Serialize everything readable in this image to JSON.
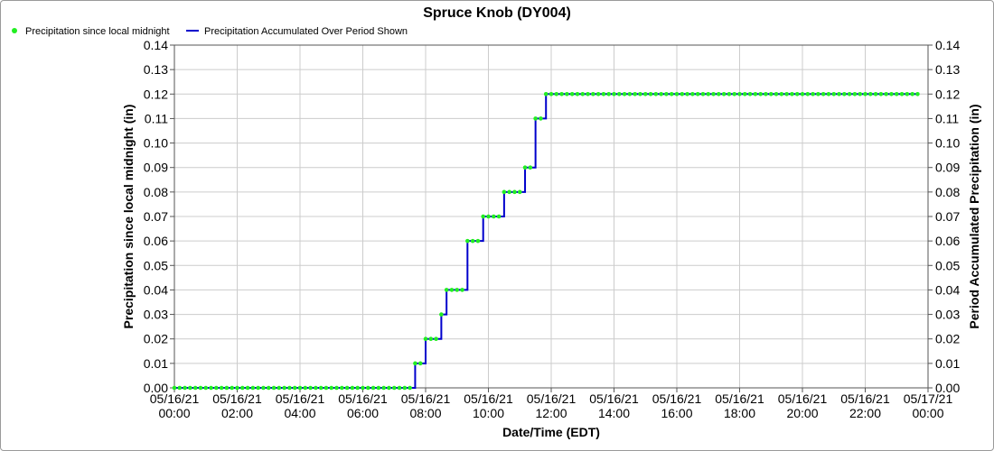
{
  "chart_data": {
    "type": "line",
    "title": "Spruce Knob (DY004)",
    "xlabel": "Date/Time (EDT)",
    "ylabel": "Precipitation since local midnight (in)",
    "y2label": "Period Accumulated Precipitation (in)",
    "ylim": [
      0,
      0.14
    ],
    "y2lim": [
      0,
      0.14
    ],
    "yticks": [
      "0.00",
      "0.01",
      "0.02",
      "0.03",
      "0.04",
      "0.05",
      "0.06",
      "0.07",
      "0.08",
      "0.09",
      "0.10",
      "0.11",
      "0.12",
      "0.13",
      "0.14"
    ],
    "xlim": [
      0,
      24
    ],
    "xticks": [
      {
        "h": 0,
        "date": "05/16/21",
        "time": "00:00"
      },
      {
        "h": 2,
        "date": "05/16/21",
        "time": "02:00"
      },
      {
        "h": 4,
        "date": "05/16/21",
        "time": "04:00"
      },
      {
        "h": 6,
        "date": "05/16/21",
        "time": "06:00"
      },
      {
        "h": 8,
        "date": "05/16/21",
        "time": "08:00"
      },
      {
        "h": 10,
        "date": "05/16/21",
        "time": "10:00"
      },
      {
        "h": 12,
        "date": "05/16/21",
        "time": "12:00"
      },
      {
        "h": 14,
        "date": "05/16/21",
        "time": "14:00"
      },
      {
        "h": 16,
        "date": "05/16/21",
        "time": "16:00"
      },
      {
        "h": 18,
        "date": "05/16/21",
        "time": "18:00"
      },
      {
        "h": 20,
        "date": "05/16/21",
        "time": "20:00"
      },
      {
        "h": 22,
        "date": "05/16/21",
        "time": "22:00"
      },
      {
        "h": 24,
        "date": "05/17/21",
        "time": "00:00"
      }
    ],
    "grid": true,
    "legend_placement": "top-left",
    "step_minutes": 10,
    "series": [
      {
        "name": "Precipitation since local midnight",
        "style": "markers",
        "color": "#22ee22",
        "values": [
          0,
          0,
          0,
          0,
          0,
          0,
          0,
          0,
          0,
          0,
          0,
          0,
          0,
          0,
          0,
          0,
          0,
          0,
          0,
          0,
          0,
          0,
          0,
          0,
          0,
          0,
          0,
          0,
          0,
          0,
          0,
          0,
          0,
          0,
          0,
          0,
          0,
          0,
          0,
          0,
          0,
          0,
          0,
          0,
          0,
          0,
          0.01,
          0.01,
          0.02,
          0.02,
          0.02,
          0.03,
          0.04,
          0.04,
          0.04,
          0.04,
          0.06,
          0.06,
          0.06,
          0.07,
          0.07,
          0.07,
          0.07,
          0.08,
          0.08,
          0.08,
          0.08,
          0.09,
          0.09,
          0.11,
          0.11,
          0.12,
          0.12,
          0.12,
          0.12,
          0.12,
          0.12,
          0.12,
          0.12,
          0.12,
          0.12,
          0.12,
          0.12,
          0.12,
          0.12,
          0.12,
          0.12,
          0.12,
          0.12,
          0.12,
          0.12,
          0.12,
          0.12,
          0.12,
          0.12,
          0.12,
          0.12,
          0.12,
          0.12,
          0.12,
          0.12,
          0.12,
          0.12,
          0.12,
          0.12,
          0.12,
          0.12,
          0.12,
          0.12,
          0.12,
          0.12,
          0.12,
          0.12,
          0.12,
          0.12,
          0.12,
          0.12,
          0.12,
          0.12,
          0.12,
          0.12,
          0.12,
          0.12,
          0.12,
          0.12,
          0.12,
          0.12,
          0.12,
          0.12,
          0.12,
          0.12,
          0.12,
          0.12,
          0.12,
          0.12,
          0.12,
          0.12,
          0.12,
          0.12,
          0.12,
          0.12,
          0.12,
          0.12
        ]
      },
      {
        "name": "Precipitation Accumulated Over Period Shown",
        "style": "line",
        "color": "#0000cc",
        "values": [
          0,
          0,
          0,
          0,
          0,
          0,
          0,
          0,
          0,
          0,
          0,
          0,
          0,
          0,
          0,
          0,
          0,
          0,
          0,
          0,
          0,
          0,
          0,
          0,
          0,
          0,
          0,
          0,
          0,
          0,
          0,
          0,
          0,
          0,
          0,
          0,
          0,
          0,
          0,
          0,
          0,
          0,
          0,
          0,
          0,
          0,
          0.01,
          0.01,
          0.02,
          0.02,
          0.02,
          0.03,
          0.04,
          0.04,
          0.04,
          0.04,
          0.06,
          0.06,
          0.06,
          0.07,
          0.07,
          0.07,
          0.07,
          0.08,
          0.08,
          0.08,
          0.08,
          0.09,
          0.09,
          0.11,
          0.11,
          0.12,
          0.12,
          0.12,
          0.12,
          0.12,
          0.12,
          0.12,
          0.12,
          0.12,
          0.12,
          0.12,
          0.12,
          0.12,
          0.12,
          0.12,
          0.12,
          0.12,
          0.12,
          0.12,
          0.12,
          0.12,
          0.12,
          0.12,
          0.12,
          0.12,
          0.12,
          0.12,
          0.12,
          0.12,
          0.12,
          0.12,
          0.12,
          0.12,
          0.12,
          0.12,
          0.12,
          0.12,
          0.12,
          0.12,
          0.12,
          0.12,
          0.12,
          0.12,
          0.12,
          0.12,
          0.12,
          0.12,
          0.12,
          0.12,
          0.12,
          0.12,
          0.12,
          0.12,
          0.12,
          0.12,
          0.12,
          0.12,
          0.12,
          0.12,
          0.12,
          0.12,
          0.12,
          0.12,
          0.12,
          0.12,
          0.12,
          0.12,
          0.12,
          0.12,
          0.12,
          0.12,
          0.12
        ]
      }
    ]
  }
}
